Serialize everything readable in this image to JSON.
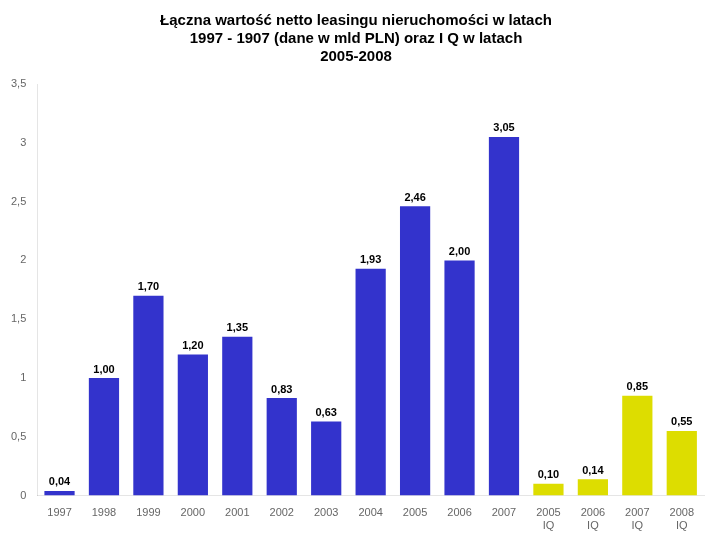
{
  "chart_data": {
    "type": "bar",
    "title": "Łączna wartość netto leasingu nieruchomości w latach\n1997 - 1907 (dane w mld PLN) oraz I Q w latach\n2005-2008",
    "categories": [
      "1997",
      "1998",
      "1999",
      "2000",
      "2001",
      "2002",
      "2003",
      "2004",
      "2005",
      "2006",
      "2007",
      "2005\nIQ",
      "2006\nIQ",
      "2007\nIQ",
      "2008\nIQ"
    ],
    "values": [
      0.04,
      1.0,
      1.7,
      1.2,
      1.35,
      0.83,
      0.63,
      1.93,
      2.46,
      2.0,
      3.05,
      0.1,
      0.14,
      0.85,
      0.55
    ],
    "value_labels": [
      "0,04",
      "1,00",
      "1,70",
      "1,20",
      "1,35",
      "0,83",
      "0,63",
      "1,93",
      "2,46",
      "2,00",
      "3,05",
      "0,10",
      "0,14",
      "0,85",
      "0,55"
    ],
    "data_labels": true,
    "colors": [
      "#3333cc",
      "#3333cc",
      "#3333cc",
      "#3333cc",
      "#3333cc",
      "#3333cc",
      "#3333cc",
      "#3333cc",
      "#3333cc",
      "#3333cc",
      "#3333cc",
      "#dddd00",
      "#dddd00",
      "#dddd00",
      "#dddd00"
    ],
    "ylim": [
      0,
      3.5
    ],
    "yticks": [
      0,
      {
        "value": 0.5,
        "label": "0,5"
      },
      1,
      {
        "value": 1.5,
        "label": "1,5"
      },
      2,
      {
        "value": 2.5,
        "label": "2,5"
      },
      3,
      {
        "value": 3.5,
        "label": "3,5"
      }
    ],
    "grid": false
  }
}
